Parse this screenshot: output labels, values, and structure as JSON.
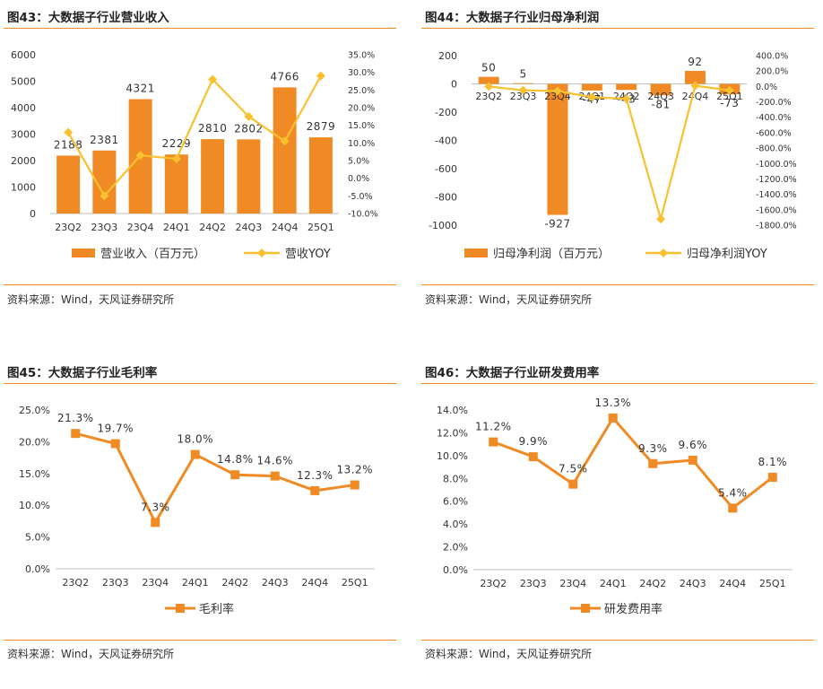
{
  "source_text": "资料来源：Wind，天风证券研究所",
  "colors": {
    "bar": "#f08a24",
    "line_yellow": "#f9c12f",
    "line_orange": "#f08a24",
    "text": "#333333"
  },
  "chart_data": [
    {
      "type": "bar",
      "title": "图43：大数据子行业营业收入",
      "categories": [
        "23Q2",
        "23Q3",
        "23Q4",
        "24Q1",
        "24Q2",
        "24Q3",
        "24Q4",
        "25Q1"
      ],
      "series": [
        {
          "name": "营业收入（百万元）",
          "type": "bar",
          "axis": "left",
          "values": [
            2188,
            2381,
            4321,
            2229,
            2810,
            2802,
            4766,
            2879
          ]
        },
        {
          "name": "营收YOY",
          "type": "line",
          "axis": "right",
          "values": [
            13.0,
            -5.0,
            6.5,
            5.5,
            28.0,
            17.5,
            10.5,
            29.0
          ]
        }
      ],
      "ylim_left": [
        0,
        6000
      ],
      "ylim_right": [
        -10,
        35
      ],
      "yticks_left": [
        "0",
        "1000",
        "2000",
        "3000",
        "4000",
        "5000",
        "6000"
      ],
      "yticks_right": [
        "-10.0%",
        "-5.0%",
        "0.0%",
        "5.0%",
        "10.0%",
        "15.0%",
        "20.0%",
        "25.0%",
        "30.0%",
        "35.0%"
      ],
      "grid": false,
      "legend": "bottom"
    },
    {
      "type": "bar",
      "title": "图44：大数据子行业归母净利润",
      "categories": [
        "23Q2",
        "23Q3",
        "23Q4",
        "24Q1",
        "24Q2",
        "24Q3",
        "24Q4",
        "25Q1"
      ],
      "series": [
        {
          "name": "归母净利润（百万元）",
          "type": "bar",
          "axis": "left",
          "values": [
            50,
            5,
            -927,
            -47,
            -43,
            -81,
            92,
            -73
          ]
        },
        {
          "name": "归母净利润YOY",
          "type": "line",
          "axis": "right",
          "values": [
            0,
            -50,
            -60,
            -140,
            -160,
            -1720,
            10,
            -50
          ]
        }
      ],
      "ylim_left": [
        -1000,
        200
      ],
      "ylim_right": [
        -1800,
        400
      ],
      "yticks_left": [
        "-1000",
        "-800",
        "-600",
        "-400",
        "-200",
        "0",
        "200"
      ],
      "yticks_right": [
        "-1800.0%",
        "-1600.0%",
        "-1400.0%",
        "-1200.0%",
        "-1000.0%",
        "-800.0%",
        "-600.0%",
        "-400.0%",
        "-200.0%",
        "0.0%",
        "200.0%",
        "400.0%"
      ],
      "grid": false,
      "legend": "bottom"
    },
    {
      "type": "line",
      "title": "图45：大数据子行业毛利率",
      "categories": [
        "23Q2",
        "23Q3",
        "23Q4",
        "24Q1",
        "24Q2",
        "24Q3",
        "24Q4",
        "25Q1"
      ],
      "series": [
        {
          "name": "毛利率",
          "values": [
            21.3,
            19.7,
            7.3,
            18.0,
            14.8,
            14.6,
            12.3,
            13.2
          ],
          "labels": [
            "21.3%",
            "19.7%",
            "7.3%",
            "18.0%",
            "14.8%",
            "14.6%",
            "12.3%",
            "13.2%"
          ]
        }
      ],
      "ylim": [
        0,
        25
      ],
      "yticks": [
        "0.0%",
        "5.0%",
        "10.0%",
        "15.0%",
        "20.0%",
        "25.0%"
      ],
      "grid": false,
      "legend": "bottom"
    },
    {
      "type": "line",
      "title": "图46：大数据子行业研发费用率",
      "categories": [
        "23Q2",
        "23Q3",
        "23Q4",
        "24Q1",
        "24Q2",
        "24Q3",
        "24Q4",
        "25Q1"
      ],
      "series": [
        {
          "name": "研发费用率",
          "values": [
            11.2,
            9.9,
            7.5,
            13.3,
            9.3,
            9.6,
            5.4,
            8.1
          ],
          "labels": [
            "11.2%",
            "9.9%",
            "7.5%",
            "13.3%",
            "9.3%",
            "9.6%",
            "5.4%",
            "8.1%"
          ]
        }
      ],
      "ylim": [
        0,
        14
      ],
      "yticks": [
        "0.0%",
        "2.0%",
        "4.0%",
        "6.0%",
        "8.0%",
        "10.0%",
        "12.0%",
        "14.0%"
      ],
      "grid": false,
      "legend": "bottom"
    }
  ]
}
